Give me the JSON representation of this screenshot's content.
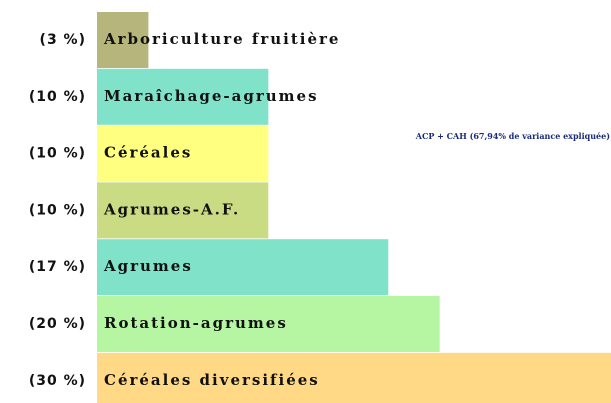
{
  "chart_data": {
    "type": "hbar",
    "categories": [
      "Arboriculture fruitière",
      "Maraîchage-agrumes",
      "Céréales",
      "Agrumes-A.F.",
      "Agrumes",
      "Rotation-agrumes",
      "Céréales diversifiées"
    ],
    "values": [
      3,
      10,
      10,
      10,
      17,
      20,
      30
    ],
    "value_labels": [
      "(3 %)",
      "(10 %)",
      "(10 %)",
      "(10 %)",
      "(17 %)",
      "(20 %)",
      "(30 %)"
    ],
    "colors": [
      "#b5b57c",
      "#80e2c9",
      "#ffff80",
      "#c9dc84",
      "#80e2c9",
      "#b6f5a2",
      "#ffd985"
    ],
    "annotation": "ACP + CAH (67,94% de variance expliquée)"
  }
}
